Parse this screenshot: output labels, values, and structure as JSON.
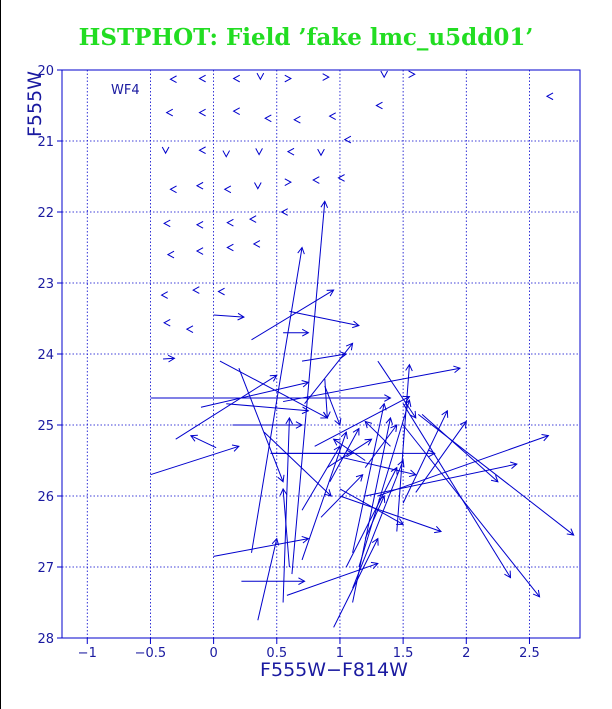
{
  "title": "HSTPHOT: Field ’fake lmc_u5dd01’",
  "colors": {
    "title": "#22dd22",
    "axes": "#1a1aa0",
    "vectors": "#0000cc",
    "grid": "#0000cc"
  },
  "chart_data": {
    "type": "scatter",
    "subtype": "vector-field",
    "title": "HSTPHOT: Field ’fake lmc_u5dd01’",
    "panel_label": "WF4",
    "xlabel": "F555W−F814W",
    "ylabel": "F555W",
    "xlim": [
      -1.2,
      2.9
    ],
    "ylim": [
      28,
      20
    ],
    "y_inverted": true,
    "grid": true,
    "grid_style": "dotted",
    "x_ticks": [
      -1,
      -0.5,
      0,
      0.5,
      1,
      1.5,
      2,
      2.5
    ],
    "x_tick_labels": [
      "−1",
      "−0.5",
      "0",
      "0.5",
      "1",
      "1.5",
      "2",
      "2.5"
    ],
    "y_ticks": [
      20,
      21,
      22,
      23,
      24,
      25,
      26,
      27,
      28
    ],
    "y_tick_labels": [
      "20",
      "21",
      "22",
      "23",
      "24",
      "25",
      "26",
      "27",
      "28"
    ],
    "small_markers": [
      [
        -0.33,
        20.13,
        "l"
      ],
      [
        -0.1,
        20.12,
        "l"
      ],
      [
        0.17,
        20.12,
        "l"
      ],
      [
        0.37,
        20.11,
        "d"
      ],
      [
        0.6,
        20.12,
        "r"
      ],
      [
        0.9,
        20.1,
        "r"
      ],
      [
        1.35,
        20.08,
        "d"
      ],
      [
        1.58,
        20.06,
        "r"
      ],
      [
        2.65,
        20.37,
        "l"
      ],
      [
        -0.36,
        20.6,
        "l"
      ],
      [
        -0.1,
        20.6,
        "l"
      ],
      [
        0.17,
        20.58,
        "l"
      ],
      [
        0.42,
        20.68,
        "l"
      ],
      [
        0.65,
        20.7,
        "l"
      ],
      [
        0.93,
        20.65,
        "l"
      ],
      [
        1.3,
        20.5,
        "l"
      ],
      [
        -0.38,
        21.15,
        "d"
      ],
      [
        -0.1,
        21.13,
        "l"
      ],
      [
        0.1,
        21.2,
        "d"
      ],
      [
        0.36,
        21.17,
        "d"
      ],
      [
        0.6,
        21.15,
        "l"
      ],
      [
        0.85,
        21.18,
        "d"
      ],
      [
        1.05,
        20.98,
        "l"
      ],
      [
        -0.33,
        21.68,
        "l"
      ],
      [
        -0.12,
        21.63,
        "l"
      ],
      [
        0.1,
        21.68,
        "l"
      ],
      [
        0.35,
        21.65,
        "d"
      ],
      [
        0.6,
        21.58,
        "r"
      ],
      [
        0.8,
        21.55,
        "l"
      ],
      [
        1.0,
        21.52,
        "l"
      ],
      [
        -0.38,
        22.16,
        "l"
      ],
      [
        -0.12,
        22.18,
        "l"
      ],
      [
        0.12,
        22.15,
        "l"
      ],
      [
        0.3,
        22.1,
        "l"
      ],
      [
        0.55,
        22.0,
        "l"
      ],
      [
        -0.35,
        22.6,
        "l"
      ],
      [
        -0.12,
        22.55,
        "l"
      ],
      [
        0.12,
        22.5,
        "l"
      ],
      [
        0.33,
        22.45,
        "l"
      ],
      [
        -0.4,
        23.17,
        "l"
      ],
      [
        -0.15,
        23.1,
        "l"
      ],
      [
        0.05,
        23.12,
        "l"
      ],
      [
        -0.38,
        23.56,
        "l"
      ],
      [
        -0.2,
        23.65,
        "l"
      ]
    ],
    "vectors": [
      [
        0.0,
        23.45,
        0.24,
        23.48
      ],
      [
        0.02,
        25.32,
        -0.18,
        25.15
      ],
      [
        -0.4,
        24.07,
        -0.31,
        24.06
      ],
      [
        0.15,
        25.0,
        0.7,
        25.0
      ],
      [
        -0.5,
        24.62,
        1.4,
        24.62
      ],
      [
        -0.5,
        25.7,
        0.2,
        25.3
      ],
      [
        -0.3,
        25.2,
        0.5,
        24.3
      ],
      [
        -0.1,
        24.75,
        0.75,
        24.4
      ],
      [
        0.1,
        24.7,
        0.75,
        24.8
      ],
      [
        0.55,
        24.67,
        1.95,
        24.2
      ],
      [
        0.05,
        24.1,
        0.9,
        24.9
      ],
      [
        0.3,
        26.8,
        0.7,
        22.5
      ],
      [
        0.62,
        27.1,
        0.88,
        21.85
      ],
      [
        0.6,
        24.0,
        0.6,
        24.0
      ],
      [
        0.7,
        24.1,
        1.05,
        24.0
      ],
      [
        0.3,
        23.8,
        0.95,
        23.1
      ],
      [
        0.6,
        23.4,
        1.15,
        23.6
      ],
      [
        0.55,
        23.7,
        0.75,
        23.7
      ],
      [
        0.72,
        24.7,
        1.1,
        23.85
      ],
      [
        0.88,
        24.35,
        0.9,
        24.9
      ],
      [
        0.88,
        24.45,
        1.0,
        25.0
      ],
      [
        0.4,
        25.1,
        0.93,
        26.0
      ],
      [
        0.45,
        25.4,
        1.1,
        25.4
      ],
      [
        0.45,
        25.4,
        1.75,
        25.4
      ],
      [
        0.8,
        25.3,
        1.55,
        24.6
      ],
      [
        0.9,
        25.6,
        1.25,
        25.2
      ],
      [
        0.7,
        26.2,
        1.0,
        25.3
      ],
      [
        0.92,
        25.8,
        1.15,
        25.05
      ],
      [
        0.85,
        26.3,
        1.18,
        25.7
      ],
      [
        0.7,
        26.9,
        1.05,
        25.1
      ],
      [
        1.0,
        25.45,
        1.6,
        25.7
      ],
      [
        1.0,
        25.9,
        1.5,
        26.4
      ],
      [
        1.0,
        26.0,
        1.8,
        26.5
      ],
      [
        1.05,
        27.0,
        1.45,
        25.6
      ],
      [
        1.1,
        27.3,
        1.5,
        25.5
      ],
      [
        1.1,
        27.5,
        1.4,
        24.9
      ],
      [
        1.1,
        26.8,
        1.35,
        24.7
      ],
      [
        1.15,
        27.0,
        1.55,
        24.65
      ],
      [
        1.2,
        26.6,
        1.35,
        26.0
      ],
      [
        0.95,
        27.85,
        1.3,
        26.6
      ],
      [
        0.58,
        27.4,
        1.3,
        26.95
      ],
      [
        0.22,
        27.2,
        0.72,
        27.2
      ],
      [
        0.0,
        26.85,
        0.75,
        26.6
      ],
      [
        0.35,
        27.75,
        0.5,
        26.6
      ],
      [
        0.55,
        27.5,
        0.6,
        24.9
      ],
      [
        0.6,
        27.0,
        0.55,
        25.9
      ],
      [
        0.2,
        24.2,
        0.55,
        25.8
      ],
      [
        1.3,
        24.1,
        1.6,
        24.9
      ],
      [
        1.45,
        26.5,
        1.55,
        24.15
      ],
      [
        1.2,
        26.0,
        2.4,
        25.55
      ],
      [
        1.3,
        26.0,
        2.65,
        25.15
      ],
      [
        1.6,
        25.95,
        2.0,
        24.95
      ],
      [
        1.5,
        26.1,
        1.85,
        24.8
      ],
      [
        1.5,
        24.7,
        2.35,
        27.15
      ],
      [
        1.5,
        25.0,
        2.58,
        27.42
      ],
      [
        1.62,
        24.85,
        2.85,
        26.55
      ],
      [
        1.4,
        25.3,
        1.2,
        24.95
      ],
      [
        1.2,
        25.5,
        0.95,
        25.2
      ],
      [
        1.2,
        25.6,
        1.45,
        25.0
      ],
      [
        1.65,
        24.85,
        2.25,
        25.8
      ]
    ]
  }
}
